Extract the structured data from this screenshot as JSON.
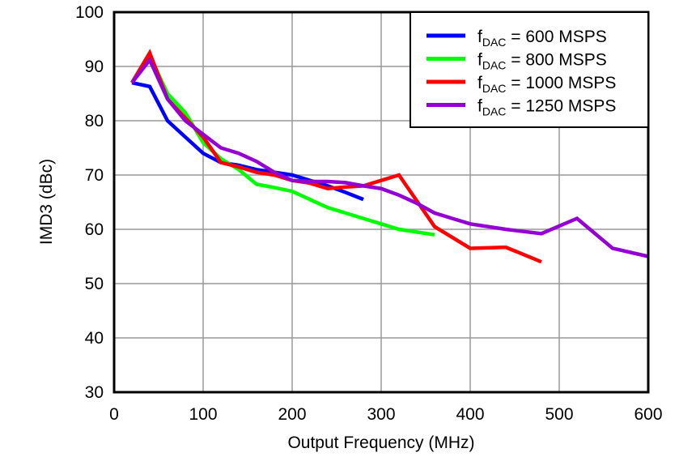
{
  "chart_data": {
    "type": "line",
    "title": "",
    "xlabel": "Output Frequency (MHz)",
    "ylabel": "IMD3 (dBc)",
    "xlim": [
      0,
      600
    ],
    "ylim": [
      30,
      100
    ],
    "xticks": [
      0,
      100,
      200,
      300,
      400,
      500,
      600
    ],
    "yticks": [
      30,
      40,
      50,
      60,
      70,
      80,
      90,
      100
    ],
    "grid": true,
    "legend_position": "top-right",
    "series": [
      {
        "name_main": "f",
        "name_sub": "DAC",
        "name_rest": " = 600 MSPS",
        "color": "#0000ff",
        "x": [
          20,
          40,
          60,
          80,
          100,
          120,
          140,
          160,
          180,
          200,
          220,
          240,
          260,
          280
        ],
        "y": [
          87,
          86.3,
          80,
          77,
          74,
          72.3,
          71.8,
          71,
          70.5,
          70,
          69,
          68,
          66.8,
          65.5
        ]
      },
      {
        "name_main": "f",
        "name_sub": "DAC",
        "name_rest": " = 800 MSPS",
        "color": "#00ff00",
        "x": [
          20,
          40,
          60,
          80,
          100,
          120,
          140,
          160,
          180,
          200,
          220,
          240,
          260,
          280,
          300,
          320,
          340,
          360
        ],
        "y": [
          87,
          92,
          85,
          81.5,
          76,
          73,
          71,
          68.3,
          67.7,
          67,
          65.5,
          64,
          63,
          62,
          61,
          60,
          59.5,
          59
        ]
      },
      {
        "name_main": "f",
        "name_sub": "DAC",
        "name_rest": " = 1000 MSPS",
        "color": "#ff0000",
        "x": [
          20,
          40,
          60,
          80,
          100,
          120,
          140,
          160,
          180,
          200,
          220,
          240,
          260,
          280,
          300,
          320,
          360,
          400,
          440,
          480
        ],
        "y": [
          87,
          92.5,
          84,
          80.5,
          77,
          72.3,
          71.5,
          70.5,
          70,
          69,
          68.5,
          67.5,
          67.8,
          68,
          69,
          70,
          60.5,
          56.5,
          56.7,
          54
        ]
      },
      {
        "name_main": "f",
        "name_sub": "DAC",
        "name_rest": " = 1250 MSPS",
        "color": "#9400d3",
        "x": [
          20,
          40,
          60,
          80,
          100,
          120,
          140,
          160,
          180,
          200,
          220,
          240,
          260,
          280,
          300,
          320,
          340,
          360,
          380,
          400,
          440,
          480,
          520,
          560,
          600
        ],
        "y": [
          87,
          91.2,
          84,
          80,
          77.5,
          75,
          74,
          72.5,
          70.5,
          69,
          68.8,
          68.8,
          68.6,
          68,
          67.5,
          66.3,
          64.8,
          63,
          62,
          61,
          60,
          59.2,
          62,
          56.5,
          55
        ]
      }
    ]
  }
}
